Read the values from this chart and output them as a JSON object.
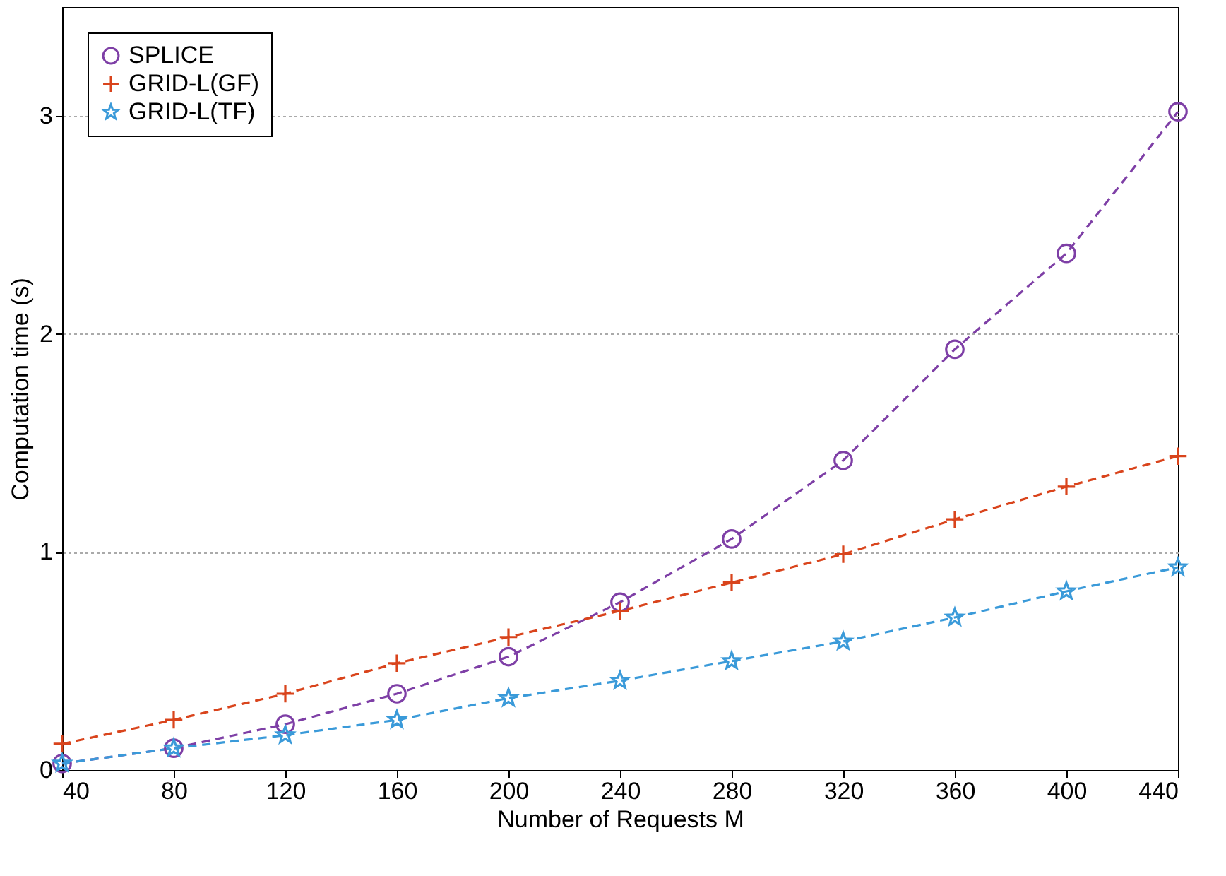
{
  "chart_data": {
    "type": "line",
    "xlabel": "Number of Requests M",
    "ylabel": "Computation time (s)",
    "x": [
      40,
      80,
      120,
      160,
      200,
      240,
      280,
      320,
      360,
      400,
      440
    ],
    "series": [
      {
        "name": "SPLICE",
        "color": "#7e3fa6",
        "marker": "circle",
        "values": [
          0.03,
          0.1,
          0.21,
          0.35,
          0.52,
          0.77,
          1.06,
          1.42,
          1.93,
          2.37,
          3.02
        ]
      },
      {
        "name": "GRID-L(GF)",
        "color": "#d9441c",
        "marker": "cross",
        "values": [
          0.12,
          0.23,
          0.35,
          0.49,
          0.61,
          0.73,
          0.86,
          0.99,
          1.15,
          1.3,
          1.44
        ]
      },
      {
        "name": "GRID-L(TF)",
        "color": "#3a9ad9",
        "marker": "star",
        "values": [
          0.03,
          0.1,
          0.16,
          0.23,
          0.33,
          0.41,
          0.5,
          0.59,
          0.7,
          0.82,
          0.93
        ]
      }
    ],
    "xlim": [
      40,
      440
    ],
    "xticks": [
      40,
      80,
      120,
      160,
      200,
      240,
      280,
      320,
      360,
      400,
      440
    ],
    "ylim": [
      0,
      3.5
    ],
    "yticks": [
      0,
      1,
      2,
      3
    ],
    "grid": "y",
    "legend": "top left",
    "line_style": "dashed"
  }
}
